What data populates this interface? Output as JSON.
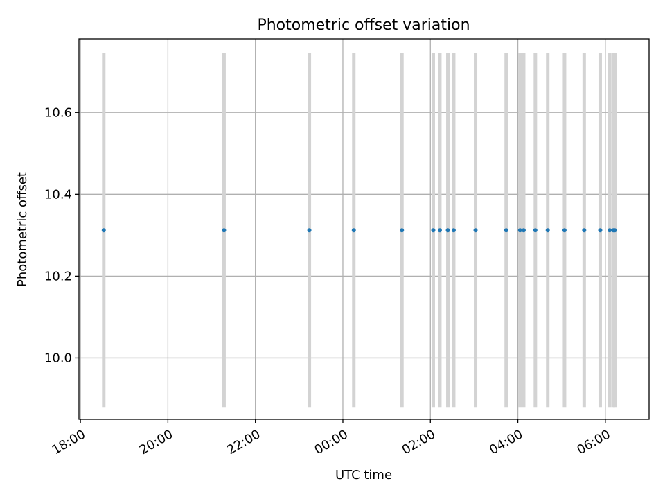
{
  "chart_data": {
    "type": "scatter",
    "title": "Photometric offset variation",
    "xlabel": "UTC time",
    "ylabel": "Photometric offset",
    "x_tick_labels": [
      "18:00",
      "20:00",
      "22:00",
      "00:00",
      "02:00",
      "04:00",
      "06:00"
    ],
    "y_tick_labels": [
      "10.0",
      "10.2",
      "10.4",
      "10.6"
    ],
    "y_ticks": [
      10.0,
      10.2,
      10.4,
      10.6
    ],
    "xlim": [
      "17:58",
      "07:00"
    ],
    "ylim": [
      9.85,
      10.78
    ],
    "grid": true,
    "colors": {
      "point": "#1f77b4",
      "error_bar": "#d3d3d3",
      "grid": "#b0b0b0"
    },
    "error_bar_range": [
      9.88,
      10.745
    ],
    "points": [
      {
        "x": "18:32",
        "y": 10.312
      },
      {
        "x": "21:17",
        "y": 10.312
      },
      {
        "x": "23:14",
        "y": 10.312
      },
      {
        "x": "00:15",
        "y": 10.312
      },
      {
        "x": "01:21",
        "y": 10.312
      },
      {
        "x": "02:04",
        "y": 10.312
      },
      {
        "x": "02:13",
        "y": 10.312
      },
      {
        "x": "02:24",
        "y": 10.312
      },
      {
        "x": "02:32",
        "y": 10.312
      },
      {
        "x": "03:02",
        "y": 10.312
      },
      {
        "x": "03:44",
        "y": 10.312
      },
      {
        "x": "04:03",
        "y": 10.312
      },
      {
        "x": "04:08",
        "y": 10.312
      },
      {
        "x": "04:24",
        "y": 10.312
      },
      {
        "x": "04:41",
        "y": 10.312
      },
      {
        "x": "05:04",
        "y": 10.312
      },
      {
        "x": "05:31",
        "y": 10.312
      },
      {
        "x": "05:53",
        "y": 10.312
      },
      {
        "x": "06:06",
        "y": 10.312
      },
      {
        "x": "06:11",
        "y": 10.312
      },
      {
        "x": "06:13",
        "y": 10.312
      }
    ]
  }
}
